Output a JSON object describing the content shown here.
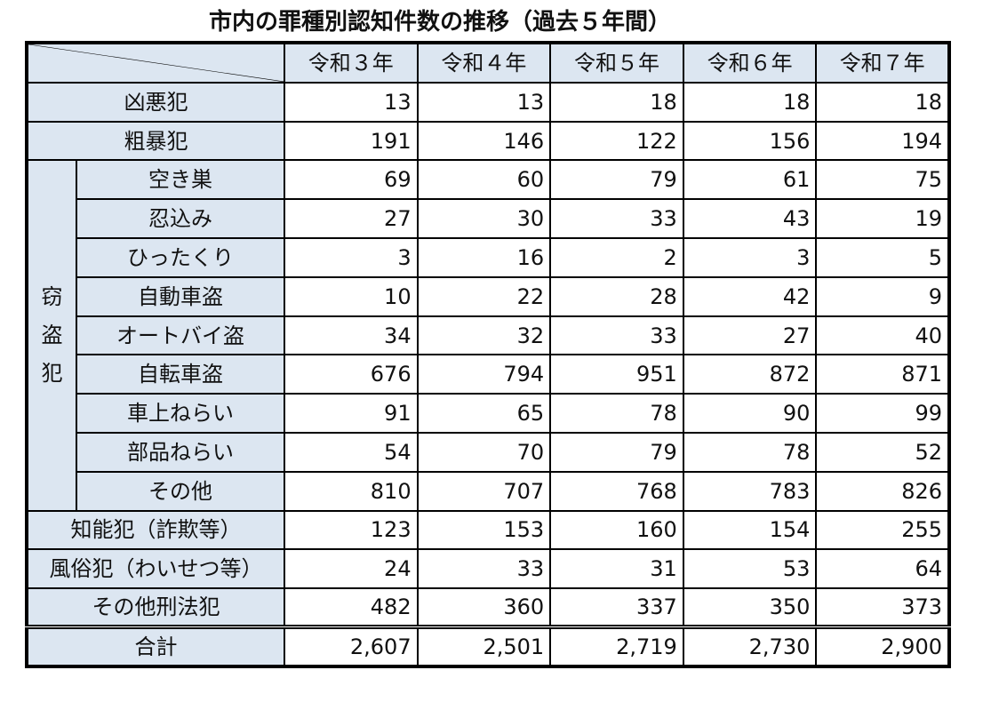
{
  "title": "市内の罪種別認知件数の推移（過去５年間）",
  "years": [
    "令和３年",
    "令和４年",
    "令和５年",
    "令和６年",
    "令和７年"
  ],
  "group_label": [
    "窃",
    "盗",
    "犯"
  ],
  "rows_top": [
    {
      "label": "凶悪犯",
      "values": [
        "13",
        "13",
        "18",
        "18",
        "18"
      ]
    },
    {
      "label": "粗暴犯",
      "values": [
        "191",
        "146",
        "122",
        "156",
        "194"
      ]
    }
  ],
  "theft_rows": [
    {
      "label": "空き巣",
      "values": [
        "69",
        "60",
        "79",
        "61",
        "75"
      ]
    },
    {
      "label": "忍込み",
      "values": [
        "27",
        "30",
        "33",
        "43",
        "19"
      ]
    },
    {
      "label": "ひったくり",
      "values": [
        "3",
        "16",
        "2",
        "3",
        "5"
      ]
    },
    {
      "label": "自動車盗",
      "values": [
        "10",
        "22",
        "28",
        "42",
        "9"
      ]
    },
    {
      "label": "オートバイ盗",
      "values": [
        "34",
        "32",
        "33",
        "27",
        "40"
      ]
    },
    {
      "label": "自転車盗",
      "values": [
        "676",
        "794",
        "951",
        "872",
        "871"
      ]
    },
    {
      "label": "車上ねらい",
      "values": [
        "91",
        "65",
        "78",
        "90",
        "99"
      ]
    },
    {
      "label": "部品ねらい",
      "values": [
        "54",
        "70",
        "79",
        "78",
        "52"
      ]
    },
    {
      "label": "その他",
      "values": [
        "810",
        "707",
        "768",
        "783",
        "826"
      ]
    }
  ],
  "rows_bottom": [
    {
      "label": "知能犯（詐欺等）",
      "values": [
        "123",
        "153",
        "160",
        "154",
        "255"
      ]
    },
    {
      "label": "風俗犯（わいせつ等）",
      "values": [
        "24",
        "33",
        "31",
        "53",
        "64"
      ]
    },
    {
      "label": "その他刑法犯",
      "values": [
        "482",
        "360",
        "337",
        "350",
        "373"
      ]
    }
  ],
  "total": {
    "label": "合計",
    "values": [
      "2,607",
      "2,501",
      "2,719",
      "2,730",
      "2,900"
    ]
  },
  "colors": {
    "header_fill": "#dce6f1",
    "border": "#000000"
  }
}
